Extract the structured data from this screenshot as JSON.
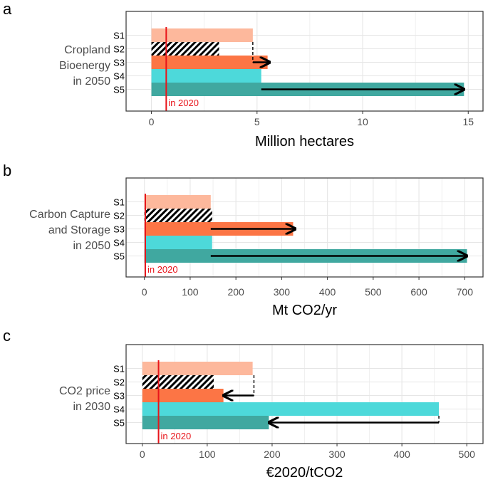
{
  "colors": {
    "S1": "#fdb89c",
    "S2": "#ffffff",
    "S3": "#fc7545",
    "S4": "#4dd9da",
    "S5": "#40a8a0",
    "ref_line": "#e8141a",
    "arrow": "#000000",
    "grid": "#e6e6e6",
    "frame": "#333333",
    "tick_label": "#4d4d4d"
  },
  "chart_data": [
    {
      "type": "bar",
      "orientation": "horizontal",
      "panel": "a",
      "ylabel_lines": [
        "Cropland",
        "Bioenergy",
        "in 2050"
      ],
      "xlabel": "Million hectares",
      "xlim": [
        -1.2,
        15.7
      ],
      "xticks": [
        0,
        5,
        10,
        15
      ],
      "categories": [
        "S1",
        "S2",
        "S3",
        "S4",
        "S5"
      ],
      "values": [
        4.8,
        3.2,
        5.5,
        5.2,
        14.8
      ],
      "hatched": [
        false,
        true,
        false,
        false,
        false
      ],
      "reference": {
        "value": 0.7,
        "label": "in 2020"
      },
      "connectors": [
        {
          "from_cat": "S1",
          "to_cat": "S3",
          "value": 4.8,
          "to_value": 5.6
        },
        {
          "from_cat": "S5",
          "to_cat": "S5",
          "value": 5.2,
          "to_value": 14.8
        }
      ]
    },
    {
      "type": "bar",
      "orientation": "horizontal",
      "panel": "b",
      "ylabel_lines": [
        "Carbon Capture",
        "and Storage",
        "in 2050"
      ],
      "xlabel": "Mt CO2/yr",
      "xlim": [
        -40,
        740
      ],
      "xticks": [
        0,
        100,
        200,
        300,
        400,
        500,
        600,
        700
      ],
      "categories": [
        "S1",
        "S2",
        "S3",
        "S4",
        "S5"
      ],
      "values": [
        145,
        148,
        325,
        148,
        705
      ],
      "hatched": [
        false,
        true,
        false,
        false,
        false
      ],
      "reference": {
        "value": 2,
        "label": "in 2020"
      },
      "connectors": [
        {
          "from_cat": "S3",
          "to_cat": "S3",
          "value": 145,
          "to_value": 330
        },
        {
          "from_cat": "S5",
          "to_cat": "S5",
          "value": 145,
          "to_value": 705
        }
      ]
    },
    {
      "type": "bar",
      "orientation": "horizontal",
      "panel": "c",
      "ylabel_lines": [
        "CO2 price",
        "in 2030"
      ],
      "xlabel": "€2020/tCO2",
      "xlim": [
        -25,
        525
      ],
      "xticks": [
        0,
        100,
        200,
        300,
        400,
        500
      ],
      "categories": [
        "S1",
        "S2",
        "S3",
        "S4",
        "S5"
      ],
      "values": [
        170,
        110,
        125,
        457,
        195
      ],
      "hatched": [
        false,
        true,
        false,
        false,
        false
      ],
      "reference": {
        "value": 25,
        "label": "in 2020"
      },
      "connectors": [
        {
          "from_cat": "S1",
          "to_cat": "S3",
          "value": 172,
          "to_value": 125
        },
        {
          "from_cat": "S4",
          "to_cat": "S5",
          "value": 457,
          "to_value": 195
        }
      ]
    }
  ]
}
